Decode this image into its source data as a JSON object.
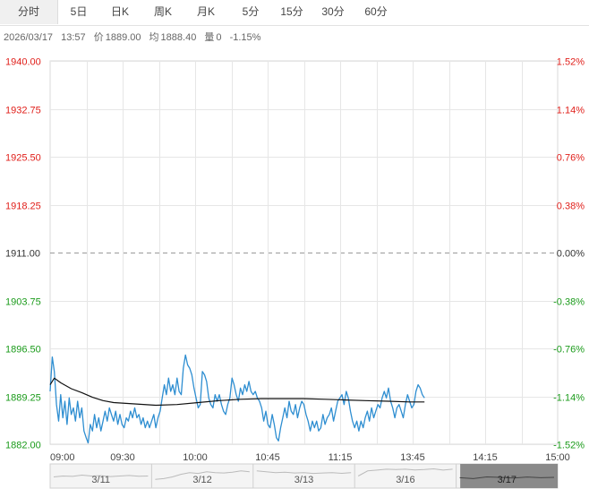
{
  "tabs": [
    {
      "label": "分时",
      "active": true
    },
    {
      "label": "5日",
      "active": false
    },
    {
      "label": "日K",
      "active": false
    },
    {
      "label": "周K",
      "active": false
    },
    {
      "label": "月K",
      "active": false
    },
    {
      "label": "5分",
      "active": false
    },
    {
      "label": "15分",
      "active": false
    },
    {
      "label": "30分",
      "active": false
    },
    {
      "label": "60分",
      "active": false
    }
  ],
  "info": {
    "date": "2026/03/17",
    "time": "13:57",
    "price_label": "价",
    "price": "1889.00",
    "avg_label": "均",
    "avg": "1888.40",
    "vol_label": "量",
    "vol": "0",
    "change": "-1.15%"
  },
  "colors": {
    "up": "#e0201b",
    "down": "#1b9b1b",
    "neutral": "#333333",
    "price_line": "#2e8ed1",
    "avg_line": "#111111",
    "grid": "#e6e6e6"
  },
  "chart_data": {
    "type": "line",
    "y_ticks": [
      "1940.00",
      "1932.75",
      "1925.50",
      "1918.25",
      "1911.00",
      "1903.75",
      "1896.50",
      "1889.25",
      "1882.00"
    ],
    "y_ticks_right": [
      "1.52%",
      "1.14%",
      "0.76%",
      "0.38%",
      "0.00%",
      "-0.38%",
      "-0.76%",
      "-1.14%",
      "-1.52%"
    ],
    "ylim": [
      1882.0,
      1940.0
    ],
    "prev_close": 1911.0,
    "x_ticks": [
      "09:00",
      "09:30",
      "10:00",
      "10:45",
      "11:15",
      "13:45",
      "14:15",
      "15:00"
    ],
    "x_tick_times": [
      "09:00",
      "09:30",
      "10:00",
      "10:45",
      "11:15",
      "13:45",
      "14:15",
      "15:00"
    ],
    "x_session_end": "15:00",
    "series": [
      {
        "kind": "price",
        "points": [
          [
            "09:00",
            1890.0
          ],
          [
            "09:01",
            1895.2
          ],
          [
            "09:02",
            1893.0
          ],
          [
            "09:03",
            1888.0
          ],
          [
            "09:04",
            1885.5
          ],
          [
            "09:05",
            1889.5
          ],
          [
            "09:06",
            1886.0
          ],
          [
            "09:07",
            1888.5
          ],
          [
            "09:08",
            1885.0
          ],
          [
            "09:09",
            1889.0
          ],
          [
            "09:10",
            1886.5
          ],
          [
            "09:11",
            1887.5
          ],
          [
            "09:12",
            1885.5
          ],
          [
            "09:13",
            1888.5
          ],
          [
            "09:14",
            1886.0
          ],
          [
            "09:15",
            1887.5
          ],
          [
            "09:16",
            1884.0
          ],
          [
            "09:17",
            1883.0
          ],
          [
            "09:18",
            1882.2
          ],
          [
            "09:19",
            1885.0
          ],
          [
            "09:20",
            1884.0
          ],
          [
            "09:21",
            1886.5
          ],
          [
            "09:22",
            1884.5
          ],
          [
            "09:23",
            1886.0
          ],
          [
            "09:24",
            1884.0
          ],
          [
            "09:25",
            1885.5
          ],
          [
            "09:26",
            1887.0
          ],
          [
            "09:27",
            1885.5
          ],
          [
            "09:28",
            1887.5
          ],
          [
            "09:29",
            1886.5
          ],
          [
            "09:30",
            1885.5
          ],
          [
            "09:31",
            1887.0
          ],
          [
            "09:32",
            1885.0
          ],
          [
            "09:33",
            1886.5
          ],
          [
            "09:34",
            1885.0
          ],
          [
            "09:35",
            1884.5
          ],
          [
            "09:36",
            1886.0
          ],
          [
            "09:37",
            1885.5
          ],
          [
            "09:38",
            1887.0
          ],
          [
            "09:39",
            1886.0
          ],
          [
            "09:40",
            1887.5
          ],
          [
            "09:41",
            1886.0
          ],
          [
            "09:42",
            1886.5
          ],
          [
            "09:43",
            1885.0
          ],
          [
            "09:44",
            1886.0
          ],
          [
            "09:45",
            1884.5
          ],
          [
            "09:46",
            1885.5
          ],
          [
            "09:47",
            1884.5
          ],
          [
            "09:48",
            1885.5
          ],
          [
            "09:49",
            1886.5
          ],
          [
            "09:50",
            1884.5
          ],
          [
            "09:51",
            1886.0
          ],
          [
            "09:52",
            1887.0
          ],
          [
            "09:53",
            1889.0
          ],
          [
            "09:54",
            1891.0
          ],
          [
            "09:55",
            1889.5
          ],
          [
            "09:56",
            1892.0
          ],
          [
            "09:57",
            1890.0
          ],
          [
            "09:58",
            1891.0
          ],
          [
            "09:59",
            1889.5
          ],
          [
            "10:00",
            1892.0
          ],
          [
            "10:01",
            1890.0
          ],
          [
            "10:02",
            1889.5
          ],
          [
            "10:03",
            1893.5
          ],
          [
            "10:04",
            1895.5
          ],
          [
            "10:05",
            1894.0
          ],
          [
            "10:06",
            1893.5
          ],
          [
            "10:07",
            1892.5
          ],
          [
            "10:08",
            1890.5
          ],
          [
            "10:09",
            1889.0
          ],
          [
            "10:10",
            1887.5
          ],
          [
            "10:11",
            1888.0
          ],
          [
            "10:12",
            1893.0
          ],
          [
            "10:13",
            1892.5
          ],
          [
            "10:14",
            1891.5
          ],
          [
            "10:15",
            1889.0
          ],
          [
            "10:16",
            1888.0
          ],
          [
            "10:17",
            1887.5
          ],
          [
            "10:18",
            1889.5
          ],
          [
            "10:19",
            1888.5
          ],
          [
            "10:20",
            1889.5
          ],
          [
            "10:21",
            1888.0
          ],
          [
            "10:22",
            1887.0
          ],
          [
            "10:23",
            1886.5
          ],
          [
            "10:24",
            1888.0
          ],
          [
            "10:25",
            1889.0
          ],
          [
            "10:26",
            1892.0
          ],
          [
            "10:27",
            1891.0
          ],
          [
            "10:28",
            1889.5
          ],
          [
            "10:29",
            1888.5
          ],
          [
            "10:30",
            1890.5
          ],
          [
            "10:31",
            1889.5
          ],
          [
            "10:32",
            1891.0
          ],
          [
            "10:33",
            1890.0
          ],
          [
            "10:34",
            1891.5
          ],
          [
            "10:35",
            1890.0
          ],
          [
            "10:36",
            1889.5
          ],
          [
            "10:37",
            1890.0
          ],
          [
            "10:38",
            1889.0
          ],
          [
            "10:39",
            1888.5
          ],
          [
            "10:40",
            1887.5
          ],
          [
            "10:41",
            1885.5
          ],
          [
            "10:42",
            1887.0
          ],
          [
            "10:43",
            1885.0
          ],
          [
            "10:44",
            1884.5
          ],
          [
            "10:45",
            1886.5
          ],
          [
            "10:46",
            1885.0
          ],
          [
            "10:47",
            1883.0
          ],
          [
            "10:48",
            1882.5
          ],
          [
            "10:49",
            1884.5
          ],
          [
            "10:50",
            1886.0
          ],
          [
            "10:51",
            1887.5
          ],
          [
            "10:52",
            1886.0
          ],
          [
            "10:53",
            1888.5
          ],
          [
            "10:54",
            1887.0
          ],
          [
            "10:55",
            1886.5
          ],
          [
            "10:56",
            1888.0
          ],
          [
            "10:57",
            1886.0
          ],
          [
            "10:58",
            1887.5
          ],
          [
            "10:59",
            1888.5
          ],
          [
            "11:00",
            1888.0
          ],
          [
            "11:01",
            1886.5
          ],
          [
            "11:02",
            1885.5
          ],
          [
            "11:03",
            1884.0
          ],
          [
            "11:04",
            1885.5
          ],
          [
            "11:05",
            1884.5
          ],
          [
            "11:06",
            1885.5
          ],
          [
            "11:07",
            1884.0
          ],
          [
            "11:08",
            1884.5
          ],
          [
            "11:09",
            1886.5
          ],
          [
            "11:10",
            1885.0
          ],
          [
            "11:11",
            1886.0
          ],
          [
            "11:12",
            1886.5
          ],
          [
            "11:13",
            1887.5
          ],
          [
            "11:14",
            1885.5
          ],
          [
            "11:15",
            1887.0
          ],
          [
            "11:16",
            1888.5
          ],
          [
            "11:17",
            1889.0
          ],
          [
            "11:18",
            1889.5
          ],
          [
            "11:19",
            1888.0
          ],
          [
            "11:20",
            1890.0
          ],
          [
            "11:21",
            1889.0
          ],
          [
            "11:22",
            1887.0
          ],
          [
            "11:23",
            1885.5
          ],
          [
            "11:24",
            1884.5
          ],
          [
            "11:25",
            1885.5
          ],
          [
            "11:26",
            1884.0
          ],
          [
            "11:27",
            1885.5
          ],
          [
            "11:28",
            1884.5
          ],
          [
            "11:29",
            1886.0
          ],
          [
            "13:30",
            1887.0
          ],
          [
            "13:31",
            1885.5
          ],
          [
            "13:32",
            1887.5
          ],
          [
            "13:33",
            1886.0
          ],
          [
            "13:34",
            1887.0
          ],
          [
            "13:35",
            1888.0
          ],
          [
            "13:36",
            1887.5
          ],
          [
            "13:37",
            1889.0
          ],
          [
            "13:38",
            1890.0
          ],
          [
            "13:39",
            1889.0
          ],
          [
            "13:40",
            1890.5
          ],
          [
            "13:41",
            1888.5
          ],
          [
            "13:42",
            1887.5
          ],
          [
            "13:43",
            1886.0
          ],
          [
            "13:44",
            1887.5
          ],
          [
            "13:45",
            1888.0
          ],
          [
            "13:46",
            1887.0
          ],
          [
            "13:47",
            1886.0
          ],
          [
            "13:48",
            1888.0
          ],
          [
            "13:49",
            1889.5
          ],
          [
            "13:50",
            1888.5
          ],
          [
            "13:51",
            1887.5
          ],
          [
            "13:52",
            1888.0
          ],
          [
            "13:53",
            1890.0
          ],
          [
            "13:54",
            1891.0
          ],
          [
            "13:55",
            1890.5
          ],
          [
            "13:56",
            1889.5
          ],
          [
            "13:57",
            1889.0
          ]
        ]
      },
      {
        "kind": "average",
        "points": [
          [
            "09:00",
            1891.0
          ],
          [
            "09:02",
            1892.0
          ],
          [
            "09:05",
            1891.3
          ],
          [
            "09:10",
            1890.4
          ],
          [
            "09:15",
            1889.8
          ],
          [
            "09:20",
            1889.1
          ],
          [
            "09:25",
            1888.6
          ],
          [
            "09:30",
            1888.3
          ],
          [
            "09:40",
            1888.1
          ],
          [
            "09:50",
            1887.9
          ],
          [
            "10:00",
            1888.0
          ],
          [
            "10:10",
            1888.3
          ],
          [
            "10:20",
            1888.6
          ],
          [
            "10:30",
            1888.8
          ],
          [
            "10:40",
            1888.9
          ],
          [
            "10:50",
            1888.9
          ],
          [
            "11:00",
            1888.9
          ],
          [
            "11:10",
            1888.8
          ],
          [
            "11:20",
            1888.7
          ],
          [
            "11:29",
            1888.6
          ],
          [
            "13:40",
            1888.5
          ],
          [
            "13:50",
            1888.4
          ],
          [
            "13:57",
            1888.4
          ]
        ]
      }
    ],
    "timeline": {
      "days": [
        "3/11",
        "3/12",
        "3/13",
        "3/16",
        "3/17"
      ],
      "selected_index": 4,
      "prices": [
        [
          0.45,
          0.5,
          0.48,
          0.55,
          0.5,
          0.52,
          0.47,
          0.5,
          0.53,
          0.49,
          0.5
        ],
        [
          0.3,
          0.35,
          0.45,
          0.6,
          0.7,
          0.65,
          0.75,
          0.7,
          0.68,
          0.72,
          0.8,
          0.75
        ],
        [
          0.8,
          0.75,
          0.7,
          0.72,
          0.68,
          0.7,
          0.65,
          0.68,
          0.7,
          0.66,
          0.7
        ],
        [
          0.5,
          0.8,
          0.85,
          0.9,
          0.88,
          0.9,
          0.86,
          0.88,
          0.92,
          0.85,
          0.9
        ],
        [
          0.4,
          0.35,
          0.45,
          0.42,
          0.38,
          0.44,
          0.4,
          0.42
        ]
      ]
    }
  }
}
